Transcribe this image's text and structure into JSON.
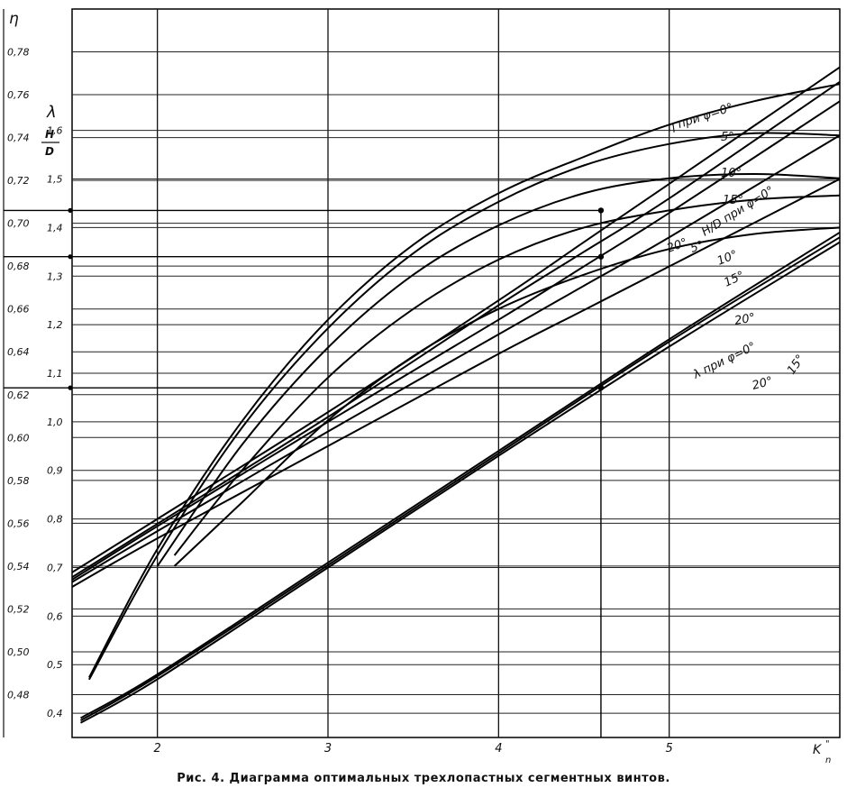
{
  "chart_data": {
    "type": "line",
    "title": "",
    "caption": "Рис. 4. Диаграмма оптимальных трехлопастных сегментных винтов.",
    "xlabel": "K\"n",
    "xlabel_main": "K",
    "xlabel_sup": "\"",
    "xlabel_sub": "n",
    "ylabel_eta": "η",
    "ylabel_lambda": "λ",
    "ylabel_hd_num": "H",
    "ylabel_hd_den": "D",
    "xlim": [
      1.5,
      6.0
    ],
    "x_ticks": [
      2,
      3,
      4,
      5
    ],
    "x_tick_labels": [
      "2",
      "3",
      "4",
      "5"
    ],
    "grid": true,
    "eta_axis": {
      "lim": [
        0.46,
        0.8
      ],
      "ticks": [
        0.48,
        0.5,
        0.52,
        0.54,
        0.56,
        0.58,
        0.6,
        0.62,
        0.64,
        0.66,
        0.68,
        0.7,
        0.72,
        0.74,
        0.76,
        0.78
      ],
      "tick_labels": [
        "0,48",
        "0,50",
        "0,52",
        "0,54",
        "0,56",
        "0,58",
        "0,60",
        "0,62",
        "0,64",
        "0,66",
        "0,68",
        "0,70",
        "0,72",
        "0,74",
        "0,76",
        "0,78"
      ]
    },
    "lambda_axis": {
      "lim": [
        0.35,
        1.85
      ],
      "ticks": [
        0.4,
        0.5,
        0.6,
        0.7,
        0.8,
        0.9,
        1.0,
        1.1,
        1.2,
        1.3,
        1.4,
        1.5,
        1.6
      ],
      "tick_labels": [
        "0,4",
        "0,5",
        "0,6",
        "0,7",
        "0,8",
        "0,9",
        "1,0",
        "1,1",
        "1,2",
        "1,3",
        "1,4",
        "1,5",
        "1,6"
      ]
    },
    "annotations": {
      "eta_group": "η при φ=0°",
      "hd_group": "H/D при φ=0°",
      "lambda_group": "λ при φ=0°"
    },
    "series": [
      {
        "group": "eta",
        "label": "η при φ=0°",
        "x": [
          1.6,
          2.0,
          2.5,
          3.0,
          3.5,
          4.0,
          4.5,
          5.0,
          5.5,
          6.0
        ],
        "eta": [
          0.488,
          0.548,
          0.608,
          0.655,
          0.69,
          0.714,
          0.731,
          0.746,
          0.757,
          0.765
        ]
      },
      {
        "group": "eta",
        "label": "5°",
        "x": [
          1.6,
          2.0,
          2.5,
          3.0,
          3.5,
          4.0,
          4.5,
          5.0,
          5.5,
          6.0
        ],
        "eta": [
          0.487,
          0.545,
          0.605,
          0.651,
          0.686,
          0.71,
          0.727,
          0.737,
          0.742,
          0.741
        ]
      },
      {
        "group": "eta",
        "label": "10°",
        "x": [
          2.0,
          2.5,
          3.0,
          3.5,
          4.0,
          4.5,
          5.0,
          5.5,
          6.0
        ],
        "eta": [
          0.54,
          0.597,
          0.642,
          0.676,
          0.699,
          0.714,
          0.721,
          0.723,
          0.721
        ]
      },
      {
        "group": "eta",
        "label": "15°",
        "x": [
          2.1,
          2.5,
          3.0,
          3.5,
          4.0,
          4.5,
          5.0,
          5.5,
          6.0
        ],
        "eta": [
          0.545,
          0.585,
          0.628,
          0.66,
          0.683,
          0.698,
          0.706,
          0.711,
          0.713
        ]
      },
      {
        "group": "eta",
        "label": "20°",
        "x": [
          2.1,
          2.5,
          3.0,
          3.5,
          4.0,
          4.5,
          5.0,
          5.5,
          6.0
        ],
        "eta": [
          0.54,
          0.57,
          0.608,
          0.638,
          0.66,
          0.676,
          0.688,
          0.695,
          0.698
        ]
      },
      {
        "group": "hd",
        "label": "H/D при φ=0°",
        "x": [
          1.5,
          2.0,
          3.0,
          4.0,
          4.5,
          5.0,
          6.0
        ],
        "lambda": [
          0.69,
          0.8,
          1.02,
          1.25,
          1.37,
          1.49,
          1.73
        ]
      },
      {
        "group": "hd",
        "label": "5°",
        "x": [
          1.5,
          2.0,
          3.0,
          4.0,
          4.5,
          5.0,
          6.0
        ],
        "lambda": [
          0.68,
          0.79,
          1.01,
          1.24,
          1.35,
          1.46,
          1.7
        ]
      },
      {
        "group": "hd",
        "label": "10°",
        "x": [
          1.5,
          2.0,
          3.0,
          4.0,
          4.5,
          5.0,
          6.0
        ],
        "lambda": [
          0.675,
          0.785,
          1.0,
          1.21,
          1.32,
          1.43,
          1.66
        ]
      },
      {
        "group": "hd",
        "label": "15°",
        "x": [
          1.5,
          2.0,
          3.0,
          4.0,
          4.5,
          5.0,
          6.0
        ],
        "lambda": [
          0.67,
          0.775,
          0.98,
          1.18,
          1.28,
          1.38,
          1.59
        ]
      },
      {
        "group": "hd",
        "label": "20°",
        "x": [
          1.5,
          2.0,
          3.0,
          4.0,
          4.5,
          5.0,
          6.0
        ],
        "lambda": [
          0.66,
          0.76,
          0.95,
          1.14,
          1.23,
          1.32,
          1.5
        ]
      },
      {
        "group": "lambda",
        "label": "λ при φ=0°",
        "x": [
          1.55,
          2.0,
          3.0,
          4.0,
          5.0,
          6.0
        ],
        "lambda": [
          0.39,
          0.48,
          0.71,
          0.94,
          1.17,
          1.39
        ]
      },
      {
        "group": "lambda",
        "label": "15°",
        "x": [
          1.55,
          2.0,
          3.0,
          4.0,
          5.0,
          6.0
        ],
        "lambda": [
          0.385,
          0.476,
          0.705,
          0.935,
          1.165,
          1.38
        ]
      },
      {
        "group": "lambda",
        "label": "20°",
        "x": [
          1.55,
          2.0,
          3.0,
          4.0,
          5.0,
          6.0
        ],
        "lambda": [
          0.38,
          0.47,
          0.7,
          0.93,
          1.155,
          1.37
        ]
      }
    ],
    "reference": {
      "x": 4.6,
      "eta": 0.706,
      "hd": 1.34,
      "lambda": 1.07
    }
  }
}
